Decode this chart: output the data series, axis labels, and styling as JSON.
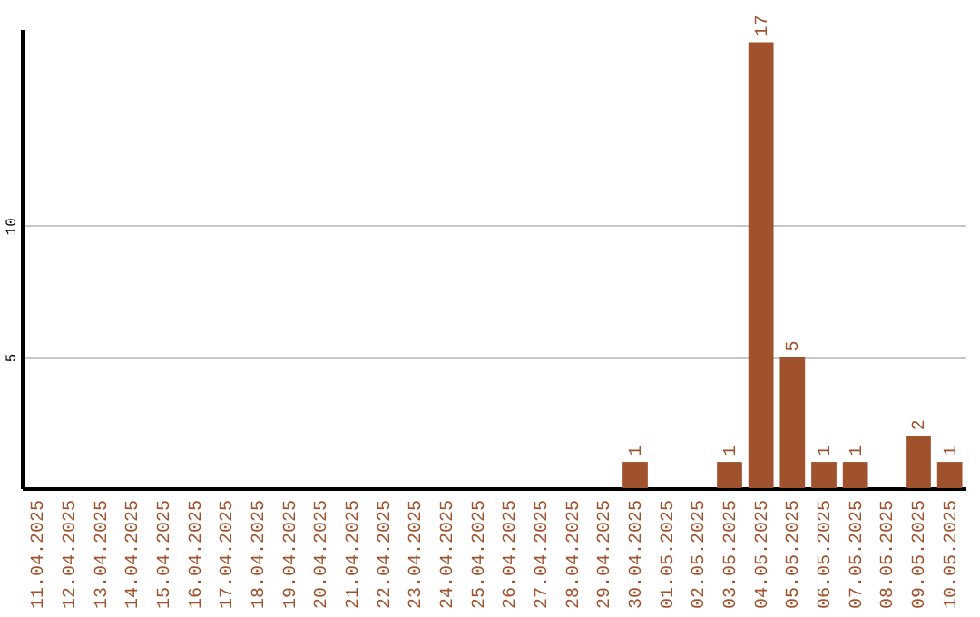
{
  "chart_data": {
    "type": "bar",
    "categories": [
      "11.04.2025",
      "12.04.2025",
      "13.04.2025",
      "14.04.2025",
      "15.04.2025",
      "16.04.2025",
      "17.04.2025",
      "18.04.2025",
      "19.04.2025",
      "20.04.2025",
      "21.04.2025",
      "22.04.2025",
      "23.04.2025",
      "24.04.2025",
      "25.04.2025",
      "26.04.2025",
      "27.04.2025",
      "28.04.2025",
      "29.04.2025",
      "30.04.2025",
      "01.05.2025",
      "02.05.2025",
      "03.05.2025",
      "04.05.2025",
      "05.05.2025",
      "06.05.2025",
      "07.05.2025",
      "08.05.2025",
      "09.05.2025",
      "10.05.2025"
    ],
    "values": [
      0,
      0,
      0,
      0,
      0,
      0,
      0,
      0,
      0,
      0,
      0,
      0,
      0,
      0,
      0,
      0,
      0,
      0,
      0,
      1,
      0,
      0,
      1,
      17,
      5,
      1,
      1,
      0,
      2,
      1
    ],
    "value_labels": [
      null,
      null,
      null,
      null,
      null,
      null,
      null,
      null,
      null,
      null,
      null,
      null,
      null,
      null,
      null,
      null,
      null,
      null,
      null,
      "1",
      null,
      null,
      "1",
      "17",
      "5",
      "1",
      "1",
      null,
      "2",
      "1"
    ],
    "color": "#a0522d",
    "ylim": [
      0,
      17.5
    ],
    "yticks": [
      5,
      10
    ],
    "grid": "y"
  }
}
